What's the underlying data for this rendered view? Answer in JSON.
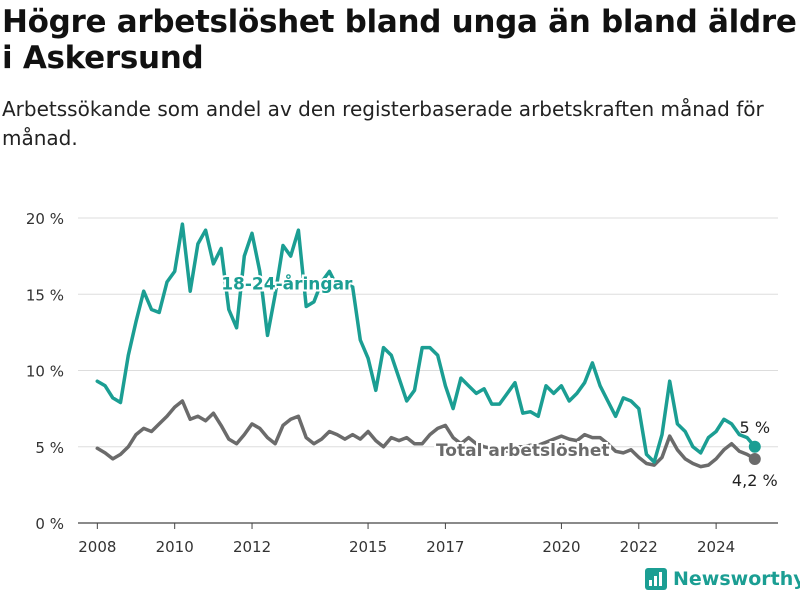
{
  "header": {
    "title": "Högre arbetslöshet bland unga än bland äldre i Askersund",
    "subtitle": "Arbetssökande som andel av den registerbaserade arbetskraften månad för månad."
  },
  "branding": {
    "name": "Newsworthy"
  },
  "colors": {
    "youth": "#1b9e93",
    "total": "#6b6b6b",
    "grid": "#dddddd",
    "axis": "#444444"
  },
  "chart_data": {
    "type": "line",
    "title": "Högre arbetslöshet bland unga än bland äldre i Askersund",
    "subtitle": "Arbetssökande som andel av den registerbaserade arbetskraften månad för månad.",
    "xlabel": "",
    "ylabel": "",
    "xlim": [
      2007.5,
      2025.6
    ],
    "ylim": [
      0,
      20
    ],
    "yticks": [
      0,
      5,
      10,
      15,
      20
    ],
    "ytick_labels": [
      "0 %",
      "5 %",
      "10 %",
      "15 %",
      "20 %"
    ],
    "xticks": [
      2008,
      2010,
      2012,
      2015,
      2017,
      2020,
      2022,
      2024
    ],
    "grid": true,
    "legend": "inline labels",
    "series": [
      {
        "name": "18-24-åringar",
        "label_x": 2012.9,
        "label_y": 15.3,
        "end_label": "5 %",
        "x": [
          2008.0,
          2008.2,
          2008.4,
          2008.6,
          2008.8,
          2009.0,
          2009.2,
          2009.4,
          2009.6,
          2009.8,
          2010.0,
          2010.2,
          2010.4,
          2010.6,
          2010.8,
          2011.0,
          2011.2,
          2011.4,
          2011.6,
          2011.8,
          2012.0,
          2012.2,
          2012.4,
          2012.6,
          2012.8,
          2013.0,
          2013.2,
          2013.4,
          2013.6,
          2013.8,
          2014.0,
          2014.2,
          2014.4,
          2014.6,
          2014.8,
          2015.0,
          2015.2,
          2015.4,
          2015.6,
          2015.8,
          2016.0,
          2016.2,
          2016.4,
          2016.6,
          2016.8,
          2017.0,
          2017.2,
          2017.4,
          2017.6,
          2017.8,
          2018.0,
          2018.2,
          2018.4,
          2018.6,
          2018.8,
          2019.0,
          2019.2,
          2019.4,
          2019.6,
          2019.8,
          2020.0,
          2020.2,
          2020.4,
          2020.6,
          2020.8,
          2021.0,
          2021.2,
          2021.4,
          2021.6,
          2021.8,
          2022.0,
          2022.2,
          2022.4,
          2022.6,
          2022.8,
          2023.0,
          2023.2,
          2023.4,
          2023.6,
          2023.8,
          2024.0,
          2024.2,
          2024.4,
          2024.6,
          2024.8,
          2025.0
        ],
        "values": [
          9.3,
          9.0,
          8.2,
          7.9,
          11.0,
          13.2,
          15.2,
          14.0,
          13.8,
          15.8,
          16.5,
          19.6,
          15.2,
          18.3,
          19.2,
          17.0,
          18.0,
          14.0,
          12.8,
          17.5,
          19.0,
          16.5,
          12.3,
          15.0,
          18.2,
          17.5,
          19.2,
          14.2,
          14.5,
          15.8,
          16.5,
          15.5,
          15.8,
          15.5,
          12.0,
          10.8,
          8.7,
          11.5,
          11.0,
          9.5,
          8.0,
          8.7,
          11.5,
          11.5,
          11.0,
          9.0,
          7.5,
          9.5,
          9.0,
          8.5,
          8.8,
          7.8,
          7.8,
          8.5,
          9.2,
          7.2,
          7.3,
          7.0,
          9.0,
          8.5,
          9.0,
          8.0,
          8.5,
          9.2,
          10.5,
          9.0,
          8.0,
          7.0,
          8.2,
          8.0,
          7.5,
          4.5,
          4.0,
          5.8,
          9.3,
          6.5,
          6.0,
          5.0,
          4.6,
          5.6,
          6.0,
          6.8,
          6.5,
          5.8,
          5.6,
          5.0
        ]
      },
      {
        "name": "Total arbetslöshet",
        "label_x": 2019.0,
        "label_y": 4.8,
        "end_label": "4,2 %",
        "x": [
          2008.0,
          2008.2,
          2008.4,
          2008.6,
          2008.8,
          2009.0,
          2009.2,
          2009.4,
          2009.6,
          2009.8,
          2010.0,
          2010.2,
          2010.4,
          2010.6,
          2010.8,
          2011.0,
          2011.2,
          2011.4,
          2011.6,
          2011.8,
          2012.0,
          2012.2,
          2012.4,
          2012.6,
          2012.8,
          2013.0,
          2013.2,
          2013.4,
          2013.6,
          2013.8,
          2014.0,
          2014.2,
          2014.4,
          2014.6,
          2014.8,
          2015.0,
          2015.2,
          2015.4,
          2015.6,
          2015.8,
          2016.0,
          2016.2,
          2016.4,
          2016.6,
          2016.8,
          2017.0,
          2017.2,
          2017.4,
          2017.6,
          2017.8,
          2018.0,
          2018.2,
          2018.4,
          2018.6,
          2018.8,
          2019.0,
          2019.2,
          2019.4,
          2019.6,
          2019.8,
          2020.0,
          2020.2,
          2020.4,
          2020.6,
          2020.8,
          2021.0,
          2021.2,
          2021.4,
          2021.6,
          2021.8,
          2022.0,
          2022.2,
          2022.4,
          2022.6,
          2022.8,
          2023.0,
          2023.2,
          2023.4,
          2023.6,
          2023.8,
          2024.0,
          2024.2,
          2024.4,
          2024.6,
          2024.8,
          2025.0
        ],
        "values": [
          4.9,
          4.6,
          4.2,
          4.5,
          5.0,
          5.8,
          6.2,
          6.0,
          6.5,
          7.0,
          7.6,
          8.0,
          6.8,
          7.0,
          6.7,
          7.2,
          6.4,
          5.5,
          5.2,
          5.8,
          6.5,
          6.2,
          5.6,
          5.2,
          6.4,
          6.8,
          7.0,
          5.6,
          5.2,
          5.5,
          6.0,
          5.8,
          5.5,
          5.8,
          5.5,
          6.0,
          5.4,
          5.0,
          5.6,
          5.4,
          5.6,
          5.2,
          5.2,
          5.8,
          6.2,
          6.4,
          5.6,
          5.2,
          5.6,
          5.2,
          5.0,
          4.9,
          4.8,
          4.7,
          5.0,
          5.0,
          5.1,
          5.1,
          5.3,
          5.5,
          5.7,
          5.5,
          5.4,
          5.8,
          5.6,
          5.6,
          5.2,
          4.7,
          4.6,
          4.8,
          4.3,
          3.9,
          3.8,
          4.3,
          5.7,
          4.8,
          4.2,
          3.9,
          3.7,
          3.8,
          4.2,
          4.8,
          5.2,
          4.7,
          4.5,
          4.2
        ]
      }
    ]
  }
}
